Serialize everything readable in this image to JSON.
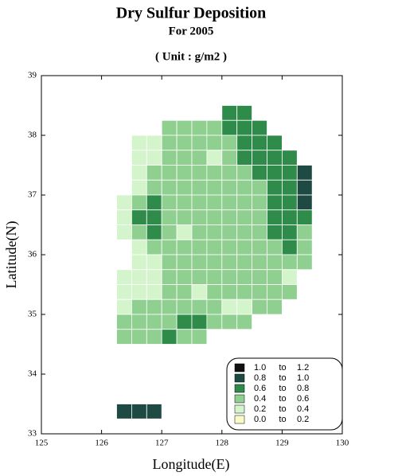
{
  "title": "Dry Sulfur Deposition",
  "subtitle": "For 2005",
  "unit": "( Unit : g/m2 )",
  "map": {
    "x_label": "Longitude(E)",
    "y_label": "Latitude(N)",
    "xlim": [
      125,
      130
    ],
    "ylim": [
      33,
      39
    ],
    "xticks": [
      125,
      126,
      127,
      128,
      129,
      130
    ],
    "yticks": [
      33,
      34,
      35,
      36,
      37,
      38,
      39
    ],
    "cell_size": 0.25,
    "cells": [
      {
        "lat": 38.375,
        "lon0": 128.125,
        "values": [
          0.7,
          0.7
        ]
      },
      {
        "lat": 38.125,
        "lon0": 127.125,
        "values": [
          0.5,
          0.5,
          0.5,
          0.5,
          0.7,
          0.7,
          0.7
        ]
      },
      {
        "lat": 37.875,
        "lon0": 126.625,
        "values": [
          0.3,
          0.3,
          0.5,
          0.5,
          0.5,
          0.5,
          0.5,
          0.7,
          0.7,
          0.7
        ]
      },
      {
        "lat": 37.625,
        "lon0": 126.625,
        "values": [
          0.3,
          0.3,
          0.5,
          0.5,
          0.5,
          0.3,
          0.5,
          0.7,
          0.7,
          0.7,
          0.7
        ]
      },
      {
        "lat": 37.375,
        "lon0": 126.625,
        "values": [
          0.3,
          0.5,
          0.5,
          0.5,
          0.5,
          0.5,
          0.5,
          0.5,
          0.7,
          0.7,
          0.7,
          0.9
        ]
      },
      {
        "lat": 37.125,
        "lon0": 126.625,
        "values": [
          0.3,
          0.5,
          0.5,
          0.5,
          0.5,
          0.5,
          0.5,
          0.5,
          0.5,
          0.7,
          0.7,
          0.9
        ]
      },
      {
        "lat": 36.875,
        "lon0": 126.375,
        "values": [
          0.3,
          0.5,
          0.7,
          0.5,
          0.5,
          0.5,
          0.5,
          0.5,
          0.5,
          0.5,
          0.7,
          0.7,
          0.9
        ]
      },
      {
        "lat": 36.625,
        "lon0": 126.375,
        "values": [
          0.3,
          0.7,
          0.7,
          0.5,
          0.5,
          0.5,
          0.5,
          0.5,
          0.5,
          0.5,
          0.7,
          0.7,
          0.7
        ]
      },
      {
        "lat": 36.375,
        "lon0": 126.375,
        "values": [
          0.3,
          0.5,
          0.7,
          0.5,
          0.3,
          0.5,
          0.5,
          0.5,
          0.5,
          0.5,
          0.7,
          0.7,
          0.5
        ]
      },
      {
        "lat": 36.125,
        "lon0": 126.625,
        "values": [
          0.3,
          0.5,
          0.5,
          0.5,
          0.5,
          0.5,
          0.5,
          0.5,
          0.5,
          0.5,
          0.7,
          0.5
        ]
      },
      {
        "lat": 35.875,
        "lon0": 126.625,
        "values": [
          0.3,
          0.3,
          0.5,
          0.5,
          0.5,
          0.5,
          0.5,
          0.5,
          0.5,
          0.5,
          0.5,
          0.5
        ]
      },
      {
        "lat": 35.625,
        "lon0": 126.375,
        "values": [
          0.3,
          0.3,
          0.3,
          0.5,
          0.5,
          0.5,
          0.5,
          0.5,
          0.5,
          0.5,
          0.5,
          0.3
        ]
      },
      {
        "lat": 35.375,
        "lon0": 126.375,
        "values": [
          0.3,
          0.3,
          0.3,
          0.5,
          0.5,
          0.3,
          0.5,
          0.5,
          0.5,
          0.5,
          0.5,
          0.5
        ]
      },
      {
        "lat": 35.125,
        "lon0": 126.375,
        "values": [
          0.3,
          0.5,
          0.5,
          0.5,
          0.5,
          0.5,
          0.5,
          0.3,
          0.3,
          0.5,
          0.5
        ]
      },
      {
        "lat": 34.875,
        "lon0": 126.375,
        "values": [
          0.5,
          0.5,
          0.5,
          0.5,
          0.7,
          0.7,
          0.5,
          0.5,
          0.5
        ]
      },
      {
        "lat": 34.625,
        "lon0": 126.375,
        "values": [
          0.5,
          0.5,
          0.5,
          0.7,
          0.5,
          0.5
        ]
      },
      {
        "lat": 33.375,
        "lon0": 126.375,
        "values": [
          0.9,
          0.9,
          0.9
        ]
      }
    ],
    "legend": {
      "connector": "to",
      "bins": [
        {
          "from": {
            "value": 1,
            "label": "1.0"
          },
          "to": 1.2,
          "color": "#111111"
        },
        {
          "from": 0.8,
          "to": {
            "value": 1,
            "label": "1.0"
          },
          "color": "#1f4a44"
        },
        {
          "from": 0.6,
          "to": 0.8,
          "color": "#2e8b4a"
        },
        {
          "from": 0.4,
          "to": 0.6,
          "color": "#8fcf8f"
        },
        {
          "from": 0.2,
          "to": 0.4,
          "color": "#d4f5cc"
        },
        {
          "from": {
            "value": 0,
            "label": "0.0"
          },
          "to": 0.2,
          "color": "#fafac8"
        }
      ]
    }
  }
}
